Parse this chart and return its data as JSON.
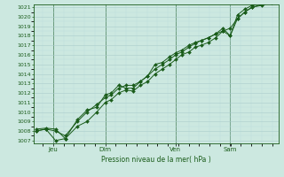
{
  "bg_color": "#cce8e0",
  "grid_major_color": "#aacccc",
  "grid_minor_color": "#bbdddd",
  "line_color": "#1a5c1a",
  "marker_color": "#1a5c1a",
  "ylabel_min": 1007,
  "ylabel_max": 1021,
  "xlabel": "Pression niveau de la mer( hPa )",
  "x_ticks_labels": [
    "Jeu",
    "Dim",
    "Ven",
    "Sam"
  ],
  "x_ticks_pos": [
    0.07,
    0.285,
    0.575,
    0.8
  ],
  "series1": [
    [
      0.0,
      1008.0
    ],
    [
      0.04,
      1008.2
    ],
    [
      0.08,
      1007.0
    ],
    [
      0.12,
      1007.2
    ],
    [
      0.17,
      1008.5
    ],
    [
      0.21,
      1009.0
    ],
    [
      0.25,
      1010.0
    ],
    [
      0.285,
      1011.0
    ],
    [
      0.31,
      1011.3
    ],
    [
      0.34,
      1012.0
    ],
    [
      0.37,
      1012.3
    ],
    [
      0.4,
      1012.2
    ],
    [
      0.43,
      1012.8
    ],
    [
      0.46,
      1013.2
    ],
    [
      0.49,
      1014.0
    ],
    [
      0.52,
      1014.5
    ],
    [
      0.55,
      1015.0
    ],
    [
      0.575,
      1015.5
    ],
    [
      0.6,
      1016.0
    ],
    [
      0.63,
      1016.3
    ],
    [
      0.655,
      1016.8
    ],
    [
      0.68,
      1017.0
    ],
    [
      0.71,
      1017.3
    ],
    [
      0.74,
      1017.8
    ],
    [
      0.77,
      1018.5
    ],
    [
      0.8,
      1018.0
    ],
    [
      0.83,
      1019.8
    ],
    [
      0.86,
      1020.5
    ],
    [
      0.89,
      1021.0
    ],
    [
      0.93,
      1021.2
    ],
    [
      0.97,
      1021.5
    ]
  ],
  "series2": [
    [
      0.0,
      1008.0
    ],
    [
      0.04,
      1008.2
    ],
    [
      0.08,
      1008.0
    ],
    [
      0.12,
      1007.5
    ],
    [
      0.17,
      1009.0
    ],
    [
      0.21,
      1010.0
    ],
    [
      0.25,
      1010.8
    ],
    [
      0.285,
      1011.5
    ],
    [
      0.31,
      1011.8
    ],
    [
      0.34,
      1012.5
    ],
    [
      0.37,
      1012.8
    ],
    [
      0.4,
      1012.8
    ],
    [
      0.43,
      1013.2
    ],
    [
      0.46,
      1013.8
    ],
    [
      0.49,
      1014.5
    ],
    [
      0.52,
      1015.0
    ],
    [
      0.55,
      1015.5
    ],
    [
      0.575,
      1016.0
    ],
    [
      0.6,
      1016.3
    ],
    [
      0.63,
      1016.8
    ],
    [
      0.655,
      1017.2
    ],
    [
      0.68,
      1017.5
    ],
    [
      0.71,
      1017.8
    ],
    [
      0.74,
      1018.2
    ],
    [
      0.77,
      1018.5
    ],
    [
      0.8,
      1018.8
    ],
    [
      0.83,
      1019.8
    ],
    [
      0.86,
      1020.5
    ],
    [
      0.89,
      1021.0
    ],
    [
      0.93,
      1021.3
    ],
    [
      0.97,
      1021.5
    ]
  ],
  "series3": [
    [
      0.0,
      1008.2
    ],
    [
      0.04,
      1008.3
    ],
    [
      0.08,
      1008.2
    ],
    [
      0.12,
      1007.2
    ],
    [
      0.17,
      1009.2
    ],
    [
      0.21,
      1010.2
    ],
    [
      0.25,
      1010.5
    ],
    [
      0.285,
      1011.8
    ],
    [
      0.31,
      1012.0
    ],
    [
      0.34,
      1012.8
    ],
    [
      0.37,
      1012.5
    ],
    [
      0.4,
      1012.5
    ],
    [
      0.43,
      1013.2
    ],
    [
      0.46,
      1013.8
    ],
    [
      0.49,
      1015.0
    ],
    [
      0.52,
      1015.2
    ],
    [
      0.55,
      1015.8
    ],
    [
      0.575,
      1016.2
    ],
    [
      0.6,
      1016.5
    ],
    [
      0.63,
      1017.0
    ],
    [
      0.655,
      1017.3
    ],
    [
      0.68,
      1017.5
    ],
    [
      0.71,
      1017.8
    ],
    [
      0.74,
      1018.2
    ],
    [
      0.77,
      1018.8
    ],
    [
      0.8,
      1018.0
    ],
    [
      0.83,
      1020.2
    ],
    [
      0.86,
      1020.8
    ],
    [
      0.89,
      1021.2
    ],
    [
      0.93,
      1021.5
    ],
    [
      0.97,
      1021.5
    ]
  ]
}
